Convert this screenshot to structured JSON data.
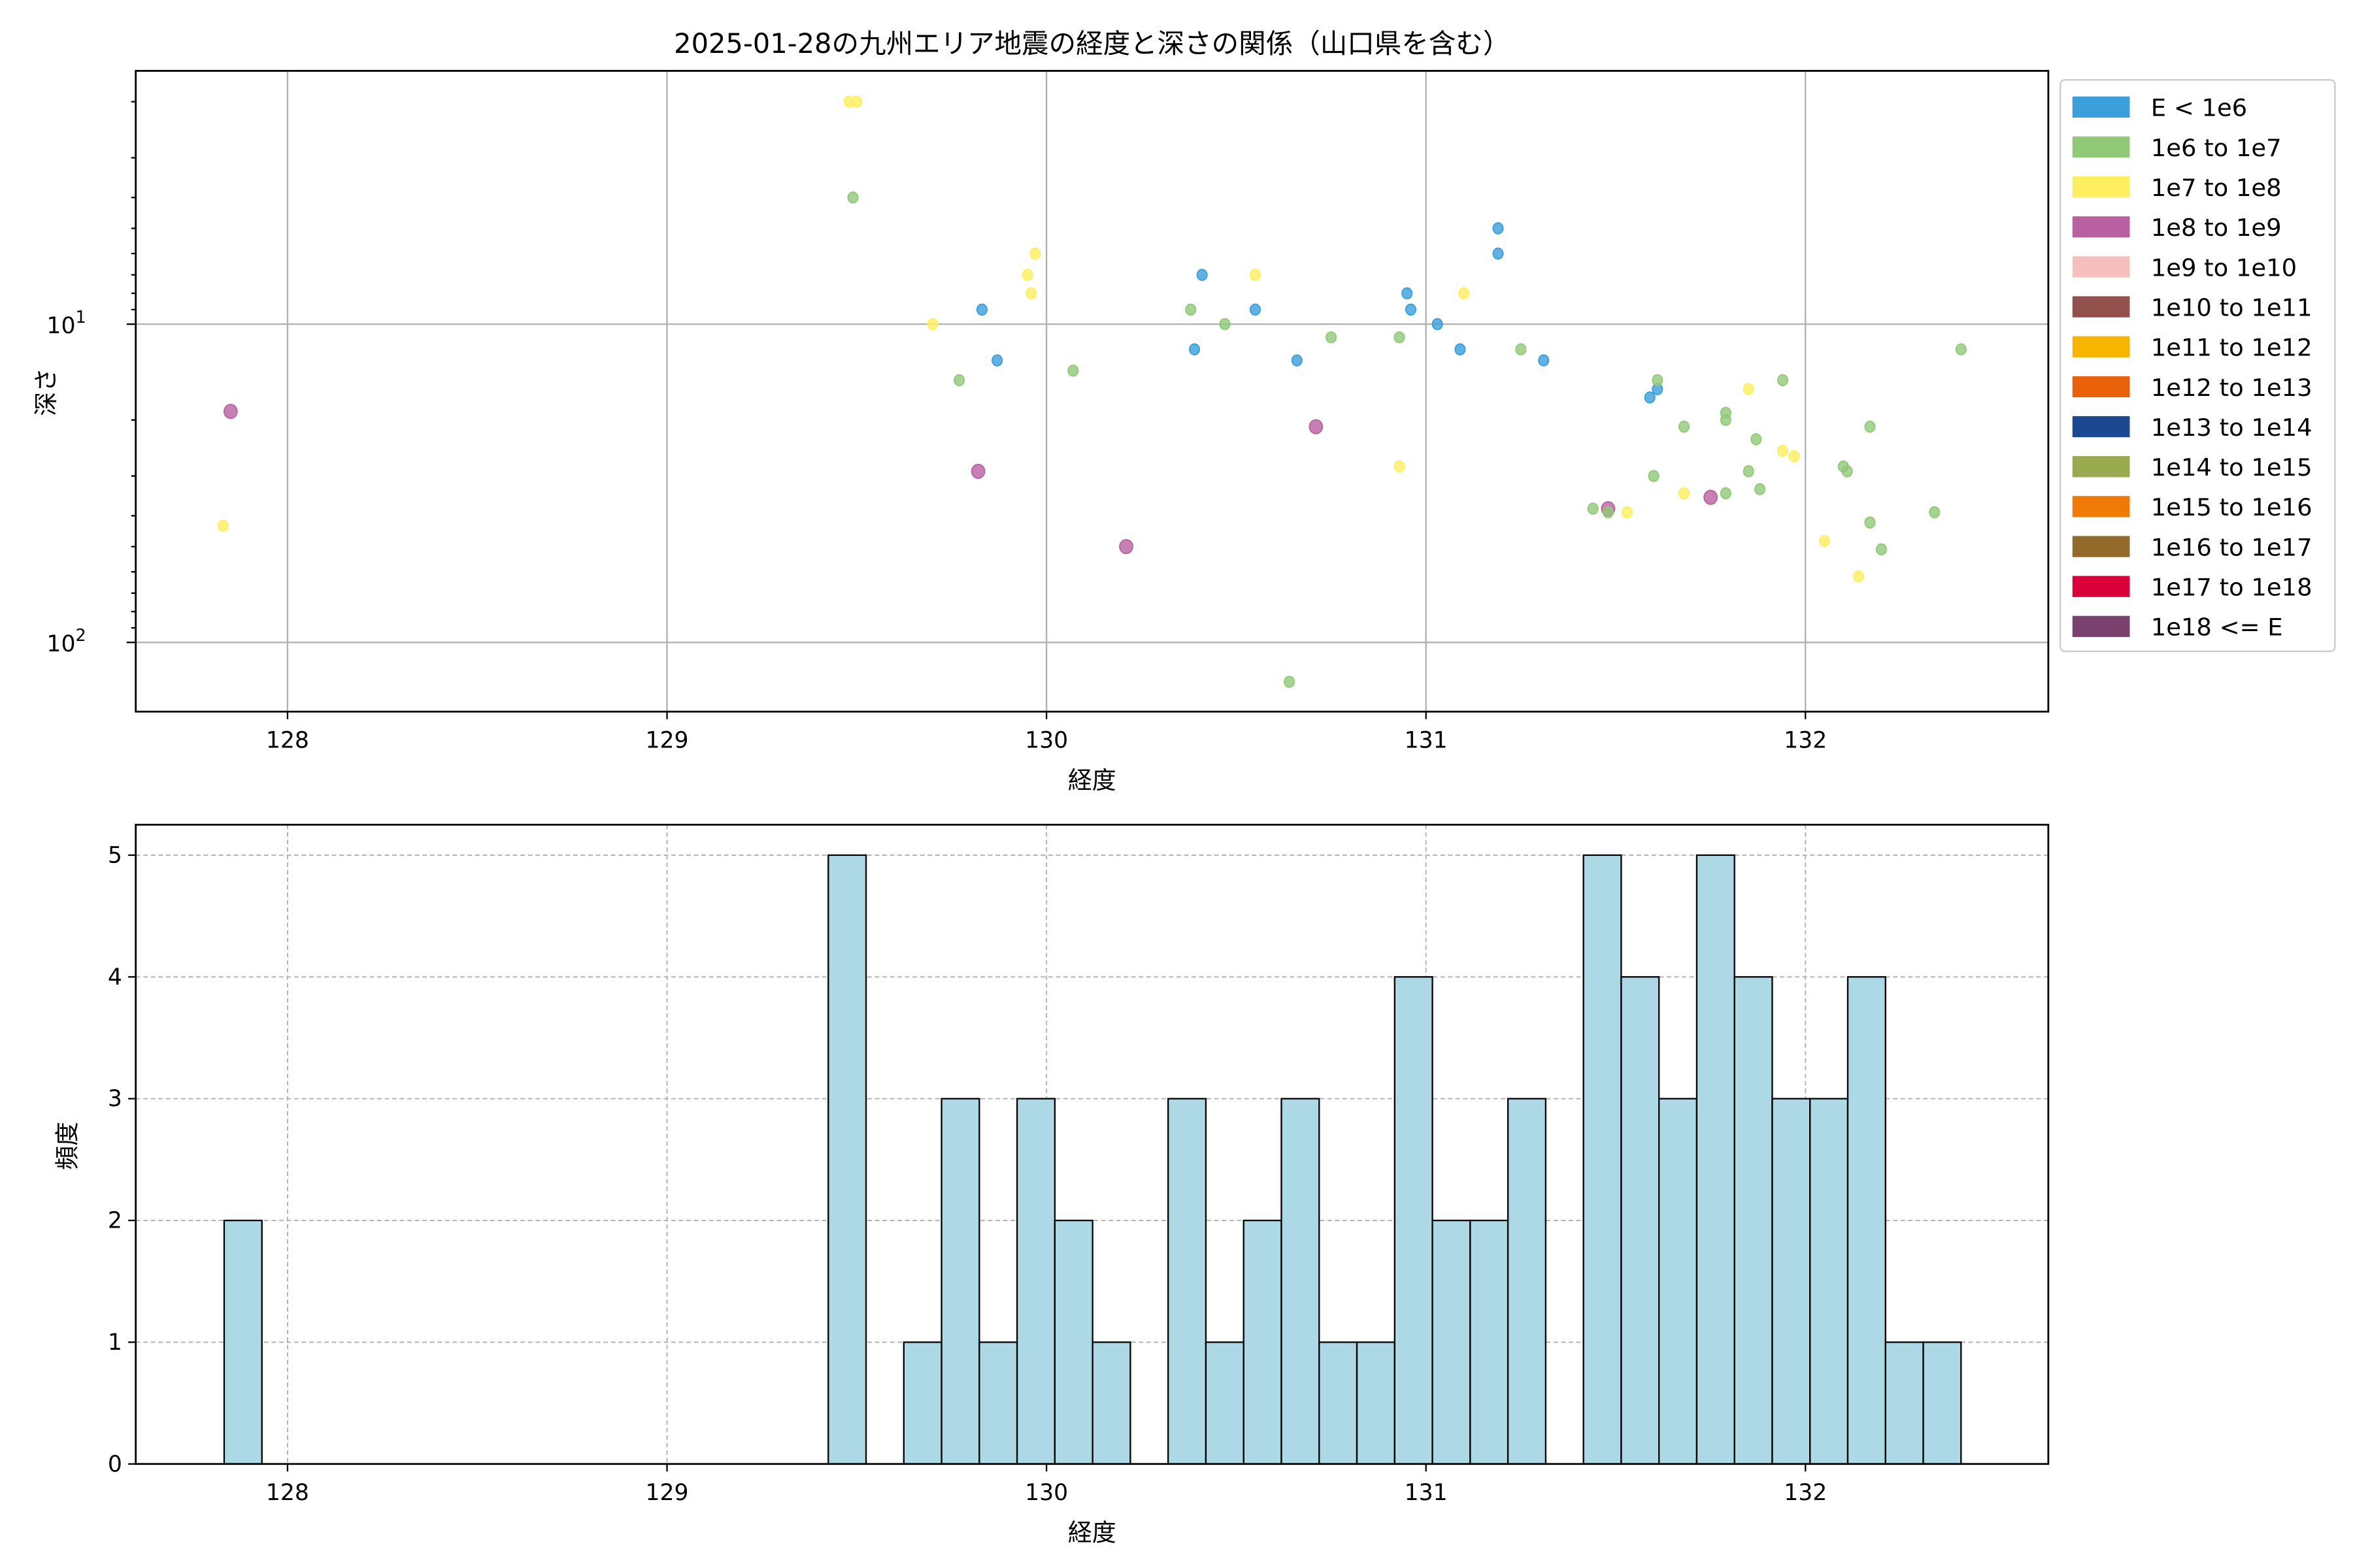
{
  "chart_data": [
    {
      "type": "scatter",
      "title": "2025-01-28の九州エリア地震の経度と深さの関係（山口県を含む）",
      "xlabel": "経度",
      "ylabel": "深さ",
      "xlim": [
        127.6,
        132.64
      ],
      "ylim": [
        1.6,
        165
      ],
      "yscale": "log",
      "yinverted": true,
      "xticks": [
        "128",
        "129",
        "130",
        "131",
        "132"
      ],
      "xtick_values": [
        128,
        129,
        130,
        131,
        132
      ],
      "yticks": [
        {
          "base": "10",
          "exp": "1",
          "value": 10
        },
        {
          "base": "10",
          "exp": "2",
          "value": 100
        }
      ],
      "grid": true,
      "legend_position": "outside-right",
      "legend": [
        {
          "label": "E < 1e6",
          "color": "#3a9fdb"
        },
        {
          "label": "1e6 to 1e7",
          "color": "#90c978"
        },
        {
          "label": "1e7 to 1e8",
          "color": "#fdef60"
        },
        {
          "label": "1e8 to 1e9",
          "color": "#b960a0"
        },
        {
          "label": "1e9 to 1e10",
          "color": "#f5bfbd"
        },
        {
          "label": "1e10 to 1e11",
          "color": "#93514d"
        },
        {
          "label": "1e11 to 1e12",
          "color": "#f7b500"
        },
        {
          "label": "1e12 to 1e13",
          "color": "#e9620a"
        },
        {
          "label": "1e13 to 1e14",
          "color": "#1b4891"
        },
        {
          "label": "1e14 to 1e15",
          "color": "#9aab4f"
        },
        {
          "label": "1e15 to 1e16",
          "color": "#f07a06"
        },
        {
          "label": "1e16 to 1e17",
          "color": "#926b2b"
        },
        {
          "label": "1e17 to 1e18",
          "color": "#d9003a"
        },
        {
          "label": "1e18 <= E",
          "color": "#7a416e"
        }
      ],
      "points": [
        [
          127.83,
          43,
          2
        ],
        [
          127.85,
          18.8,
          3
        ],
        [
          129.48,
          2.0,
          2
        ],
        [
          129.5,
          2.0,
          2
        ],
        [
          129.49,
          4,
          1
        ],
        [
          129.97,
          6,
          2
        ],
        [
          129.95,
          7,
          2
        ],
        [
          129.96,
          8,
          2
        ],
        [
          129.83,
          9,
          0
        ],
        [
          129.7,
          10,
          2
        ],
        [
          129.87,
          13,
          0
        ],
        [
          129.77,
          15,
          1
        ],
        [
          129.82,
          29,
          3
        ],
        [
          130.21,
          50,
          3
        ],
        [
          130.07,
          14,
          1
        ],
        [
          130.41,
          7,
          0
        ],
        [
          130.55,
          7,
          2
        ],
        [
          130.38,
          9,
          1
        ],
        [
          130.47,
          10,
          1
        ],
        [
          130.55,
          9,
          0
        ],
        [
          130.39,
          12,
          0
        ],
        [
          130.66,
          13,
          0
        ],
        [
          130.75,
          11,
          1
        ],
        [
          130.93,
          11,
          1
        ],
        [
          130.95,
          8,
          0
        ],
        [
          130.96,
          9,
          0
        ],
        [
          131.03,
          10,
          0
        ],
        [
          131.1,
          8,
          2
        ],
        [
          131.19,
          5,
          0
        ],
        [
          131.19,
          6,
          0
        ],
        [
          131.09,
          12,
          0
        ],
        [
          131.25,
          12,
          1
        ],
        [
          131.31,
          13,
          0
        ],
        [
          130.71,
          21,
          3
        ],
        [
          130.93,
          28,
          2
        ],
        [
          130.64,
          133,
          1
        ],
        [
          131.59,
          17,
          0
        ],
        [
          131.61,
          16,
          0
        ],
        [
          131.61,
          15,
          1
        ],
        [
          131.94,
          15,
          1
        ],
        [
          131.85,
          16,
          2
        ],
        [
          131.79,
          19,
          1
        ],
        [
          131.79,
          20,
          1
        ],
        [
          131.68,
          21,
          1
        ],
        [
          132.17,
          21,
          1
        ],
        [
          131.87,
          23,
          1
        ],
        [
          131.94,
          25,
          2
        ],
        [
          131.97,
          26,
          2
        ],
        [
          132.1,
          28,
          1
        ],
        [
          132.11,
          29,
          1
        ],
        [
          131.6,
          30,
          1
        ],
        [
          131.85,
          29,
          1
        ],
        [
          131.68,
          34,
          2
        ],
        [
          131.79,
          34,
          1
        ],
        [
          131.88,
          33,
          1
        ],
        [
          131.75,
          35,
          3
        ],
        [
          131.44,
          38,
          1
        ],
        [
          131.48,
          38,
          3
        ],
        [
          131.48,
          39,
          1
        ],
        [
          131.53,
          39,
          2
        ],
        [
          132.17,
          42,
          1
        ],
        [
          132.34,
          39,
          1
        ],
        [
          132.05,
          48,
          2
        ],
        [
          132.2,
          51,
          1
        ],
        [
          132.14,
          62,
          2
        ],
        [
          132.41,
          12,
          1
        ]
      ]
    },
    {
      "type": "bar",
      "subtype": "histogram",
      "xlabel": "経度",
      "ylabel": "頻度",
      "xlim": [
        127.6,
        132.64
      ],
      "ylim": [
        0,
        5.25
      ],
      "xticks": [
        "128",
        "129",
        "130",
        "131",
        "132"
      ],
      "xtick_values": [
        128,
        129,
        130,
        131,
        132
      ],
      "yticks": [
        "0",
        "1",
        "2",
        "3",
        "4",
        "5"
      ],
      "ytick_values": [
        0,
        1,
        2,
        3,
        4,
        5
      ],
      "grid": true,
      "bar_color": "#add8e6",
      "bin_start": 127.833,
      "bin_width": 0.0995,
      "counts": [
        2,
        0,
        0,
        0,
        0,
        0,
        0,
        0,
        0,
        0,
        0,
        0,
        0,
        0,
        0,
        0,
        5,
        0,
        1,
        3,
        1,
        3,
        2,
        1,
        0,
        3,
        1,
        2,
        3,
        1,
        1,
        4,
        2,
        2,
        3,
        0,
        5,
        4,
        3,
        5,
        4,
        3,
        3,
        4,
        1,
        1
      ]
    }
  ]
}
